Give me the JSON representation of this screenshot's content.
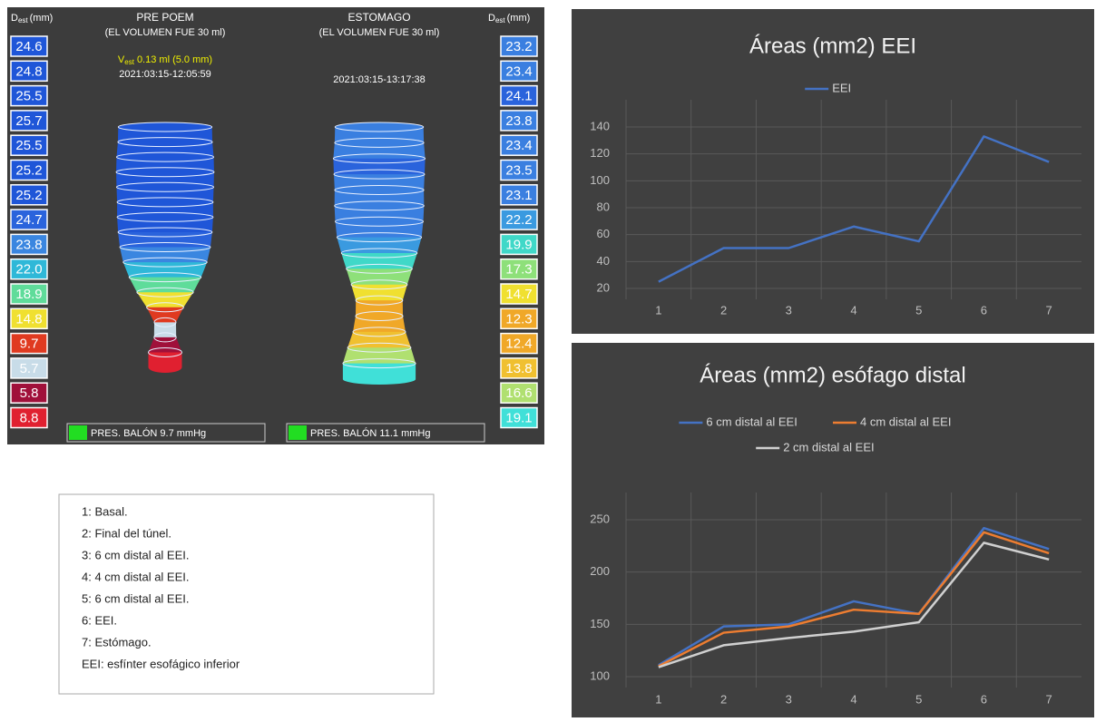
{
  "endoflip": {
    "dest_label": {
      "symbol": "D",
      "subscript": "est",
      "unit": "(mm)"
    },
    "panels": [
      {
        "title": "PRE POEM",
        "subtitle": "(EL VOLUMEN FUE 30 ml)",
        "volume": {
          "symbol": "V",
          "subscript": "est",
          "text": "0.13 ml (5.0 mm)"
        },
        "timestamp": "2021:03:15-12:05:59",
        "pressure": "PRES. BALÓN 9.7 mmHg",
        "diameters": [
          "24.6",
          "24.8",
          "25.5",
          "25.7",
          "25.5",
          "25.2",
          "25.2",
          "24.7",
          "23.8",
          "22.0",
          "18.9",
          "14.8",
          "9.7",
          "5.7",
          "5.8",
          "8.8"
        ],
        "colors": [
          "#1f56d8",
          "#1f56d8",
          "#1f56d8",
          "#1f56d8",
          "#1f56d8",
          "#1f56d8",
          "#1f56d8",
          "#2a63dc",
          "#3a86e0",
          "#2fb8d8",
          "#5fdc9a",
          "#f0e030",
          "#e03a20",
          "#c8dce8",
          "#a0103a",
          "#e02030"
        ]
      },
      {
        "title": "ESTOMAGO",
        "subtitle": "(EL VOLUMEN FUE 30 ml)",
        "timestamp": "2021:03:15-13:17:38",
        "pressure": "PRES. BALÓN 11.1 mmHg",
        "diameters": [
          "23.2",
          "23.4",
          "24.1",
          "23.8",
          "23.4",
          "23.5",
          "23.1",
          "22.2",
          "19.9",
          "17.3",
          "14.7",
          "12.3",
          "12.4",
          "13.8",
          "16.6",
          "19.1"
        ],
        "colors": [
          "#3a7fe0",
          "#3a7fe0",
          "#2a63dc",
          "#3a7fe0",
          "#3a7fe0",
          "#3a7fe0",
          "#3a7fe0",
          "#3a9ae0",
          "#40d8c8",
          "#8ee07a",
          "#f0e030",
          "#f0a828",
          "#f0a828",
          "#f0c030",
          "#b0e070",
          "#40e0d8"
        ]
      }
    ]
  },
  "notes": {
    "lines": [
      "1: Basal.",
      "2: Final del túnel.",
      "3: 6 cm distal al EEI.",
      "4: 4 cm distal al EEI.",
      "5: 6 cm distal al EEI.",
      "6: EEI.",
      "7: Estómago.",
      "EEI: esfínter esofágico inferior"
    ]
  },
  "chart_data": [
    {
      "type": "line",
      "title": "Áreas (mm2) EEI",
      "categories": [
        "1",
        "2",
        "3",
        "4",
        "5",
        "6",
        "7"
      ],
      "series": [
        {
          "name": "EEI",
          "color": "#4472c4",
          "values": [
            25,
            50,
            50,
            66,
            55,
            133,
            114
          ]
        }
      ],
      "ylim": [
        20,
        140
      ],
      "yticks": [
        20,
        40,
        60,
        80,
        100,
        120,
        140
      ],
      "grid": true,
      "legend": "top"
    },
    {
      "type": "line",
      "title": "Áreas (mm2) esófago distal",
      "categories": [
        "1",
        "2",
        "3",
        "4",
        "5",
        "6",
        "7"
      ],
      "series": [
        {
          "name": "6 cm distal al EEI",
          "color": "#4472c4",
          "values": [
            111,
            148,
            150,
            172,
            160,
            242,
            222
          ]
        },
        {
          "name": "4 cm distal al EEI",
          "color": "#ed7d31",
          "values": [
            110,
            142,
            148,
            164,
            160,
            238,
            218
          ]
        },
        {
          "name": "2 cm distal al EEI",
          "color": "#d0d0d0",
          "values": [
            109,
            130,
            137,
            143,
            152,
            228,
            212
          ]
        }
      ],
      "ylim": [
        100,
        250
      ],
      "yticks": [
        100,
        150,
        200,
        250
      ],
      "grid": true,
      "legend": "top"
    }
  ]
}
